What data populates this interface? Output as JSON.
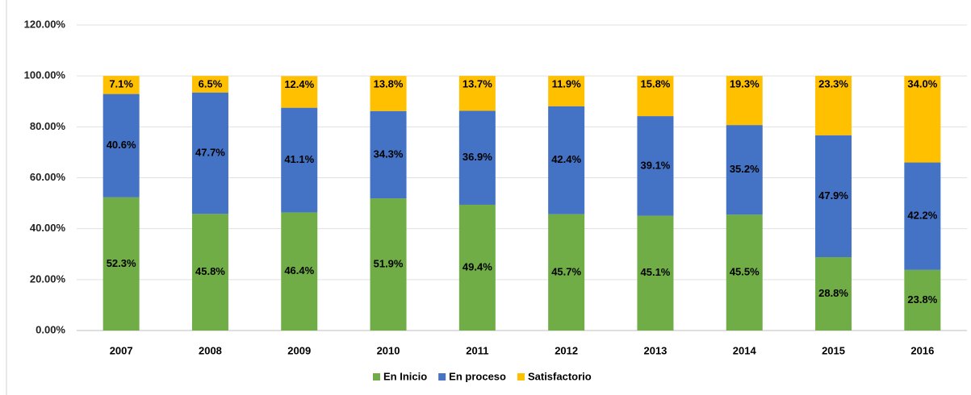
{
  "chart_data": {
    "type": "stacked_bar",
    "categories": [
      "2007",
      "2008",
      "2009",
      "2010",
      "2011",
      "2012",
      "2013",
      "2014",
      "2015",
      "2016"
    ],
    "series": [
      {
        "name": "En Inicio",
        "color": "#70ad47",
        "values": [
          52.3,
          45.8,
          46.4,
          51.9,
          49.4,
          45.7,
          45.1,
          45.5,
          28.8,
          23.8
        ],
        "value_labels": [
          "52.3%",
          "45.8%",
          "46.4%",
          "51.9%",
          "49.4%",
          "45.7%",
          "45.1%",
          "45.5%",
          "28.8%",
          "23.8%"
        ]
      },
      {
        "name": "En proceso",
        "color": "#4472c4",
        "values": [
          40.6,
          47.7,
          41.1,
          34.3,
          36.9,
          42.4,
          39.1,
          35.2,
          47.9,
          42.2
        ],
        "value_labels": [
          "40.6%",
          "47.7%",
          "41.1%",
          "34.3%",
          "36.9%",
          "42.4%",
          "39.1%",
          "35.2%",
          "47.9%",
          "42.2%"
        ]
      },
      {
        "name": "Satisfactorio",
        "color": "#ffc000",
        "values": [
          7.1,
          6.5,
          12.4,
          13.8,
          13.7,
          11.9,
          15.8,
          19.3,
          23.3,
          34.0
        ],
        "value_labels": [
          "7.1%",
          "6.5%",
          "12.4%",
          "13.8%",
          "13.7%",
          "11.9%",
          "15.8%",
          "19.3%",
          "23.3%",
          "34.0%"
        ]
      }
    ],
    "ylim": [
      0,
      120
    ],
    "yticks": [
      {
        "value": 0,
        "label": "0.00%"
      },
      {
        "value": 20,
        "label": "20.00%"
      },
      {
        "value": 40,
        "label": "40.00%"
      },
      {
        "value": 60,
        "label": "60.00%"
      },
      {
        "value": 80,
        "label": "80.00%"
      },
      {
        "value": 100,
        "label": "100.00%"
      },
      {
        "value": 120,
        "label": "120.00%"
      }
    ],
    "grid": true,
    "legend": "bottom"
  }
}
